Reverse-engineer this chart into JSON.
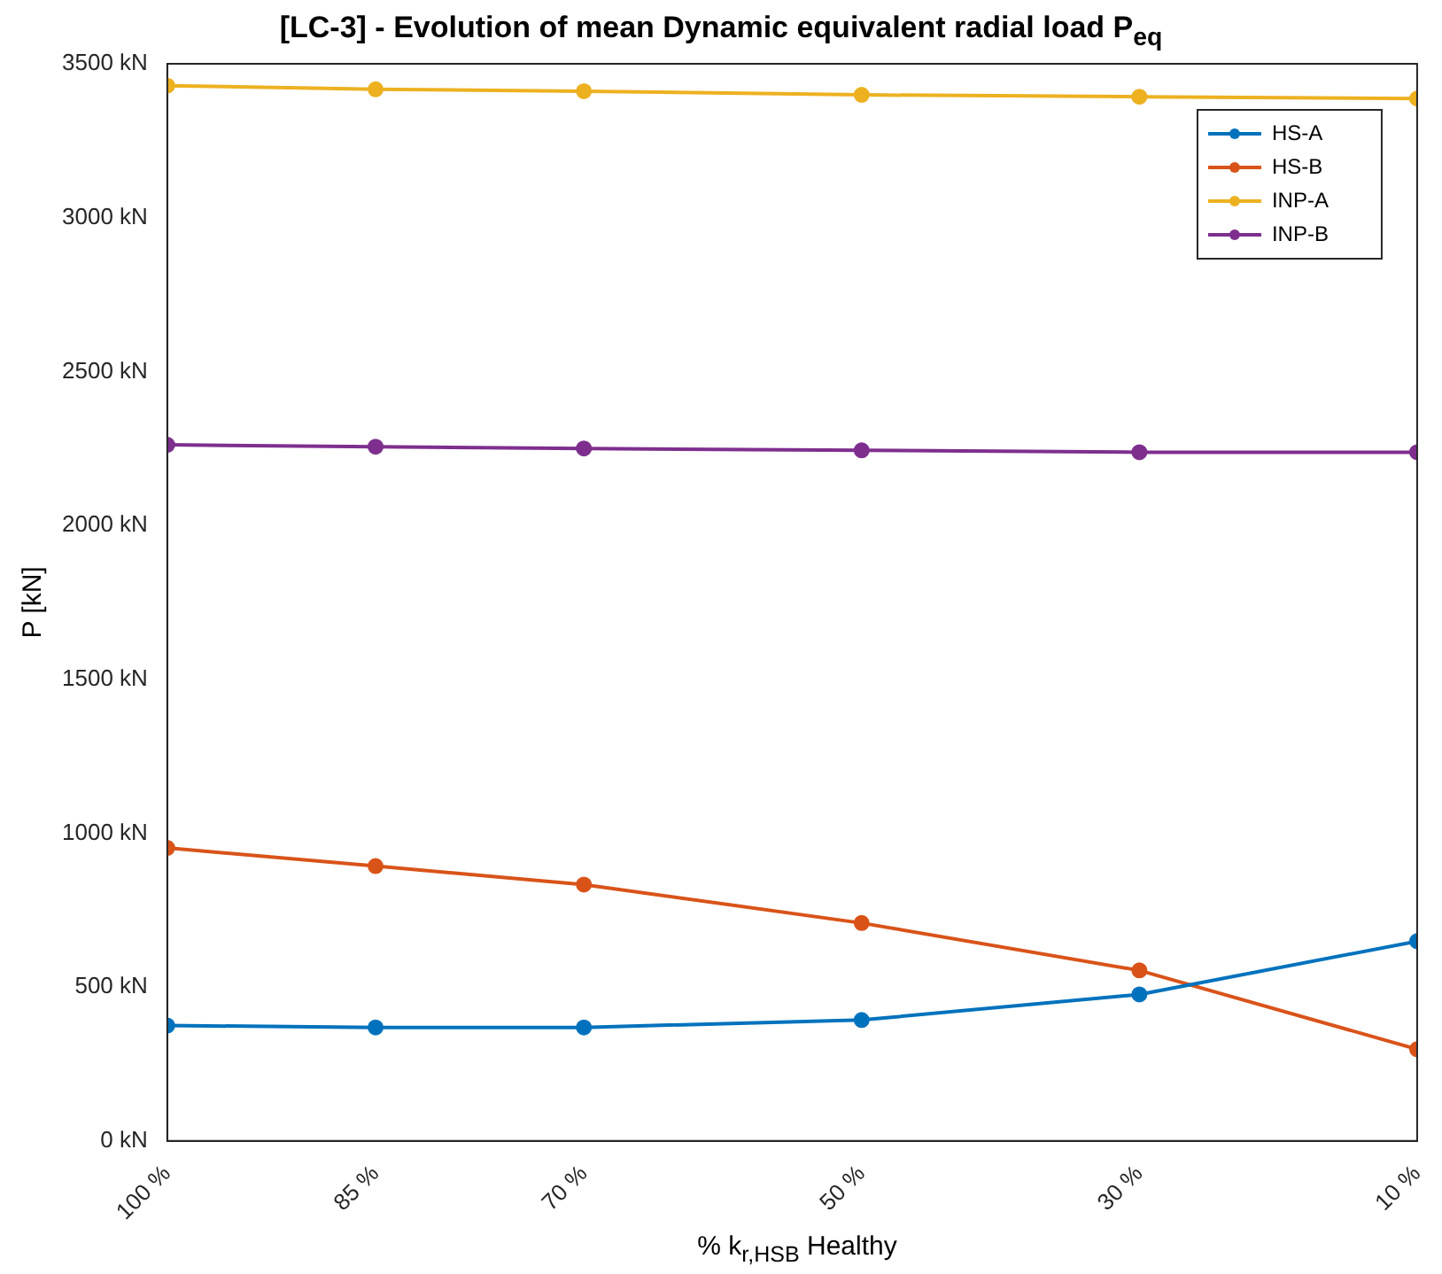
{
  "chart_data": {
    "type": "line",
    "title": "[LC-3] - Evolution of mean Dynamic equivalent radial load P$_{eq}$",
    "xlabel": "% k$_{r,HSB}$ Healthy",
    "ylabel": "P [kN]",
    "x": [
      100,
      85,
      70,
      50,
      30,
      10
    ],
    "xlim": [
      100,
      10
    ],
    "xticks": [
      {
        "value": 100,
        "label": "100 %"
      },
      {
        "value": 85,
        "label": "85 %"
      },
      {
        "value": 70,
        "label": "70 %"
      },
      {
        "value": 50,
        "label": "50 %"
      },
      {
        "value": 30,
        "label": "30 %"
      },
      {
        "value": 10,
        "label": "10 %"
      }
    ],
    "ylim": [
      0,
      3500
    ],
    "yticks": [
      {
        "value": 0,
        "label": "0 kN"
      },
      {
        "value": 500,
        "label": "500 kN"
      },
      {
        "value": 1000,
        "label": "1000 kN"
      },
      {
        "value": 1500,
        "label": "1500 kN"
      },
      {
        "value": 2000,
        "label": "2000 kN"
      },
      {
        "value": 2500,
        "label": "2500 kN"
      },
      {
        "value": 3000,
        "label": "3000 kN"
      },
      {
        "value": 3500,
        "label": "3500 kN"
      }
    ],
    "series": [
      {
        "name": "HS-A",
        "color": "#0072bd",
        "values": [
          375,
          369,
          369,
          393,
          476,
          649
        ]
      },
      {
        "name": "HS-B",
        "color": "#d95319",
        "values": [
          952,
          893,
          833,
          708,
          554,
          298
        ]
      },
      {
        "name": "INP-A",
        "color": "#edb120",
        "values": [
          3429,
          3417,
          3411,
          3399,
          3393,
          3387
        ]
      },
      {
        "name": "INP-B",
        "color": "#7e2f8e",
        "values": [
          2262,
          2256,
          2250,
          2244,
          2238,
          2238
        ]
      }
    ],
    "legend": "top right",
    "marker": "circle",
    "line_style": "solid",
    "grid": false
  }
}
